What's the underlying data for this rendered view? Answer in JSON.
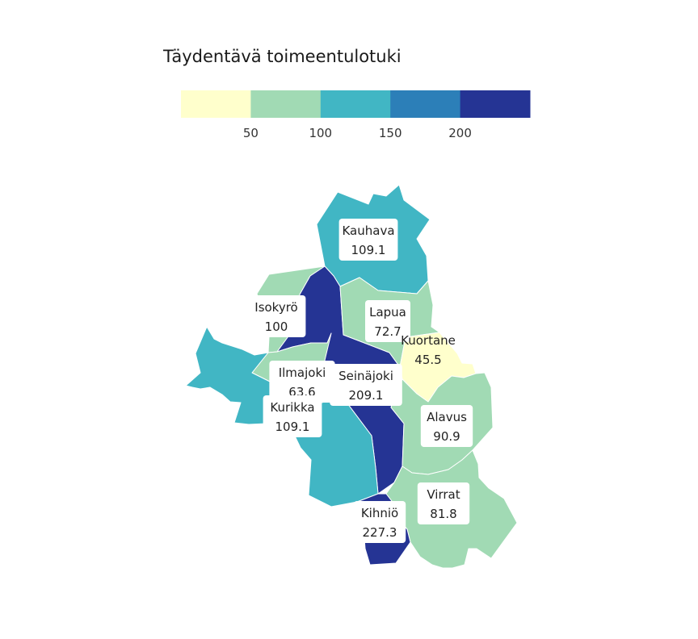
{
  "legend": {
    "title": "Täydentävä toimeentulotuki",
    "bins": [
      {
        "upper": 50,
        "color": "#ffffcc"
      },
      {
        "upper": 100,
        "color": "#a1dab4"
      },
      {
        "upper": 150,
        "color": "#41b6c4"
      },
      {
        "upper": 200,
        "color": "#2c7fb8"
      },
      {
        "upper": 250,
        "color": "#253494"
      }
    ],
    "ticks": [
      "50",
      "100",
      "150",
      "200"
    ]
  },
  "regions": [
    {
      "name": "Kauhava",
      "value": "109.1",
      "color": "#41b6c4"
    },
    {
      "name": "Isokyrö",
      "value": "100",
      "color": "#a1dab4"
    },
    {
      "name": "Lapua",
      "value": "72.7",
      "color": "#a1dab4"
    },
    {
      "name": "Kuortane",
      "value": "45.5",
      "color": "#ffffcc"
    },
    {
      "name": "Ilmajoki",
      "value": "63.6",
      "color": "#a1dab4"
    },
    {
      "name": "Seinäjoki",
      "value": "209.1",
      "color": "#253494"
    },
    {
      "name": "Kurikka",
      "value": "109.1",
      "color": "#41b6c4"
    },
    {
      "name": "Alavus",
      "value": "90.9",
      "color": "#a1dab4"
    },
    {
      "name": "Kihniö",
      "value": "227.3",
      "color": "#253494"
    },
    {
      "name": "Virrat",
      "value": "81.8",
      "color": "#a1dab4"
    }
  ]
}
